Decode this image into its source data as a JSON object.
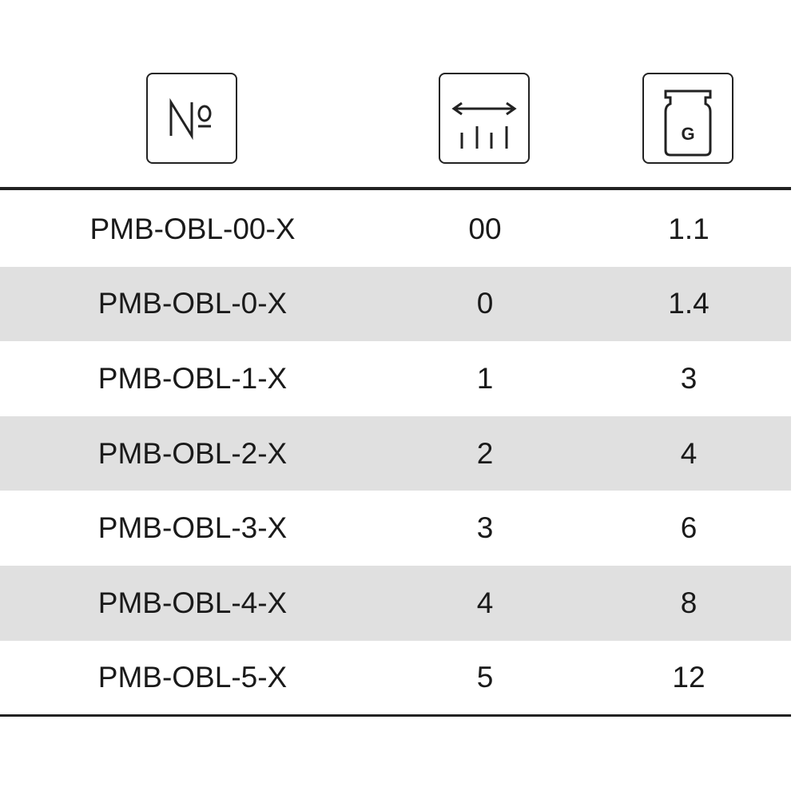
{
  "header": {
    "icons": [
      "number-sign-icon",
      "size-ruler-icon",
      "weight-icon"
    ],
    "weight_icon_letter": "G"
  },
  "rows": [
    {
      "model": "PMB-OBL-00-X",
      "size": "00",
      "weight": "1.1"
    },
    {
      "model": "PMB-OBL-0-X",
      "size": "0",
      "weight": "1.4"
    },
    {
      "model": "PMB-OBL-1-X",
      "size": "1",
      "weight": "3"
    },
    {
      "model": "PMB-OBL-2-X",
      "size": "2",
      "weight": "4"
    },
    {
      "model": "PMB-OBL-3-X",
      "size": "3",
      "weight": "6"
    },
    {
      "model": "PMB-OBL-4-X",
      "size": "4",
      "weight": "8"
    },
    {
      "model": "PMB-OBL-5-X",
      "size": "5",
      "weight": "12"
    }
  ],
  "colors": {
    "stripe": "#e0e0e0",
    "rule": "#222222"
  }
}
